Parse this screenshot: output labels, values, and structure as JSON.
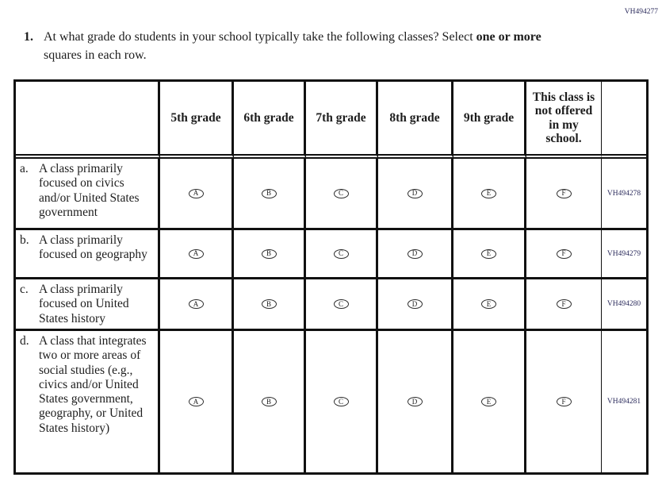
{
  "page": {
    "form_code": "VH494277"
  },
  "question": {
    "number": "1.",
    "text_before": "At what grade do students in your school typically take the following classes? Select ",
    "text_bold": "one or more",
    "text_after": " squares in each row."
  },
  "table": {
    "column_headers": [
      "5th grade",
      "6th grade",
      "7th grade",
      "8th grade",
      "9th grade",
      "This class is not offered in my school."
    ],
    "rows": [
      {
        "letter": "a.",
        "label": "A class primarily focused on civics and/or United States government",
        "options": [
          "A",
          "B",
          "C",
          "D",
          "E",
          "F"
        ],
        "code": "VH494278"
      },
      {
        "letter": "b.",
        "label": "A class primarily focused on geography",
        "options": [
          "A",
          "B",
          "C",
          "D",
          "E",
          "F"
        ],
        "code": "VH494279"
      },
      {
        "letter": "c.",
        "label": "A class primarily focused on United States history",
        "options": [
          "A",
          "B",
          "C",
          "D",
          "E",
          "F"
        ],
        "code": "VH494280"
      },
      {
        "letter": "d.",
        "label": "A class that integrates two or more areas of social studies (e.g., civics and/or United States government, geography, or United States history)",
        "options": [
          "A",
          "B",
          "C",
          "D",
          "E",
          "F"
        ],
        "code": "VH494281"
      }
    ]
  },
  "colors": {
    "text": "#1d1d1d",
    "border": "#111111",
    "code_text": "#2b2b5c"
  }
}
